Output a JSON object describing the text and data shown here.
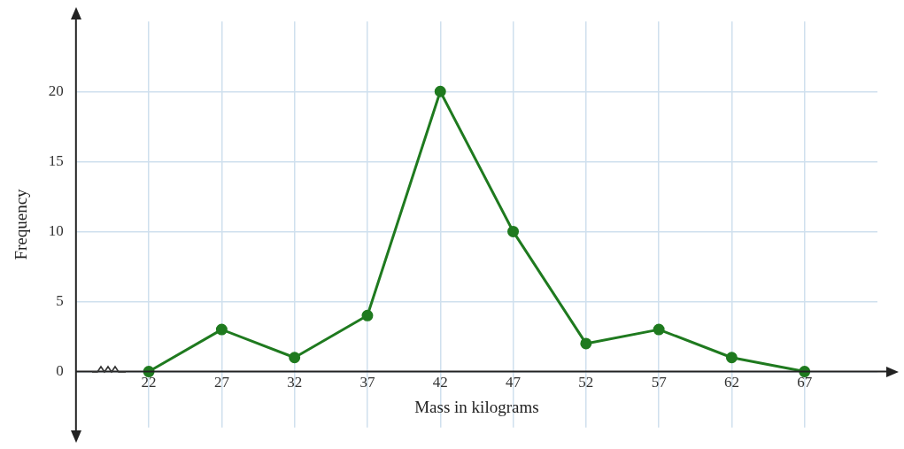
{
  "chart_data": {
    "type": "line",
    "xlabel": "Mass in kilograms",
    "ylabel": "Frequency",
    "x": [
      22,
      27,
      32,
      37,
      42,
      47,
      52,
      57,
      62,
      67
    ],
    "series": [
      {
        "color": "#1f7a1f",
        "values": [
          0,
          3,
          1,
          4,
          20,
          10,
          2,
          3,
          1,
          0
        ]
      }
    ],
    "xlim": [
      17,
      72
    ],
    "xticks": [
      22,
      27,
      32,
      37,
      42,
      47,
      52,
      57,
      62,
      67
    ],
    "ylim": [
      -4,
      25
    ],
    "yticks": [
      0,
      5,
      10,
      15,
      20
    ],
    "grid": true,
    "legend": false,
    "marker": "circle",
    "line_style": "solid"
  }
}
